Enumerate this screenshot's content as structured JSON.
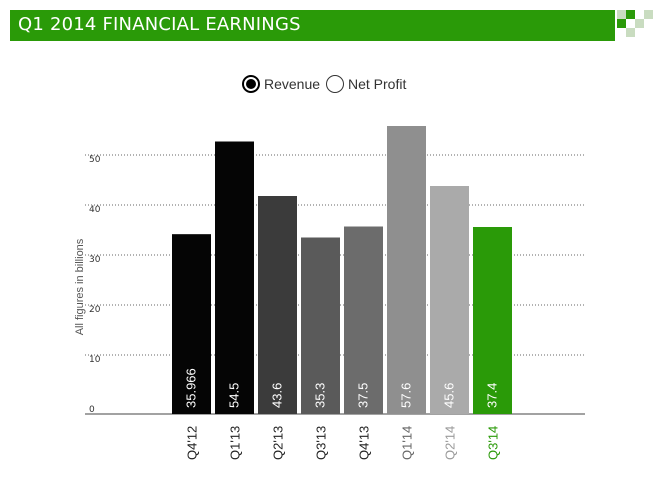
{
  "title": "Q1 2014 FINANCIAL EARNINGS",
  "colors": {
    "brand_green": "#2a9a08",
    "deco_light": "#c9dcc0",
    "deco_dark": "#2a9a08"
  },
  "toggles": [
    {
      "label": "Revenue",
      "selected": true
    },
    {
      "label": "Net Profit",
      "selected": false
    }
  ],
  "chart_data": {
    "type": "bar",
    "ylabel": "All figures in billions",
    "ylim": [
      0,
      60
    ],
    "yticks": [
      0,
      10,
      20,
      30,
      40,
      50
    ],
    "grid": true,
    "categories": [
      "Q4'12",
      "Q1'13",
      "Q2'13",
      "Q3'13",
      "Q4'13",
      "Q1'14",
      "Q2'14",
      "Q3'14"
    ],
    "values": [
      35.966,
      54.5,
      43.6,
      35.3,
      37.5,
      57.6,
      45.6,
      37.4
    ],
    "value_labels": [
      "35.966",
      "54.5",
      "43.6",
      "35.3",
      "37.5",
      "57.6",
      "45.6",
      "37.4"
    ],
    "bar_colors": [
      "#050505",
      "#050505",
      "#3b3b3b",
      "#5a5a5a",
      "#6c6c6c",
      "#8f8f8f",
      "#aaaaaa",
      "#2a9a08"
    ],
    "tick_label_colors": [
      "#222222",
      "#222222",
      "#222222",
      "#222222",
      "#222222",
      "#666666",
      "#9a9a9a",
      "#2a9a08"
    ]
  }
}
